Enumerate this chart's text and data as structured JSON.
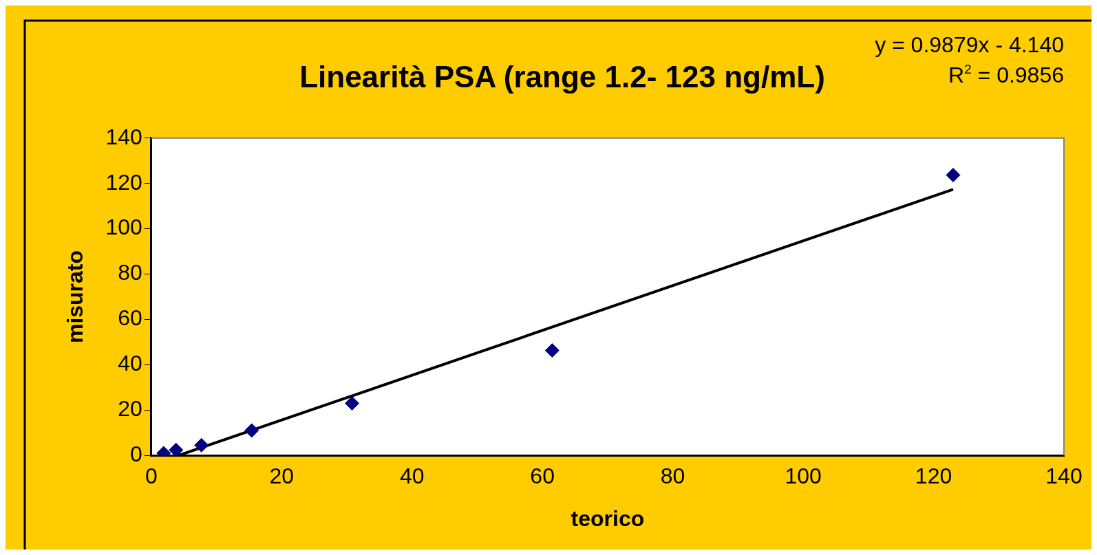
{
  "chart_data": {
    "type": "scatter",
    "title": "Linearità PSA (range 1.2- 123 ng/mL)",
    "xlabel": "teorico",
    "ylabel": "misurato",
    "annotations": [
      "y = 0.9879x - 4.140",
      "R$^{2}$ = 0.9856"
    ],
    "xlim": [
      0,
      140
    ],
    "xticks": [
      0,
      20,
      40,
      60,
      80,
      100,
      120,
      140
    ],
    "ylim": [
      0,
      140
    ],
    "yticks": [
      0,
      20,
      40,
      60,
      80,
      100,
      120,
      140
    ],
    "grid": false,
    "legend": false,
    "marker": "diamond",
    "series": [
      {
        "color": "#000080",
        "x": [
          1.9,
          3.8,
          7.7,
          15.4,
          30.8,
          61.5,
          123
        ],
        "values": [
          1.0,
          2.4,
          4.5,
          11,
          23,
          46.3,
          123.7
        ]
      },
      {
        "type": "line",
        "color": "#000000",
        "line_style": "solid",
        "marker": "none",
        "x": [
          4.2,
          123
        ],
        "values": [
          0,
          117.4
        ]
      }
    ]
  }
}
